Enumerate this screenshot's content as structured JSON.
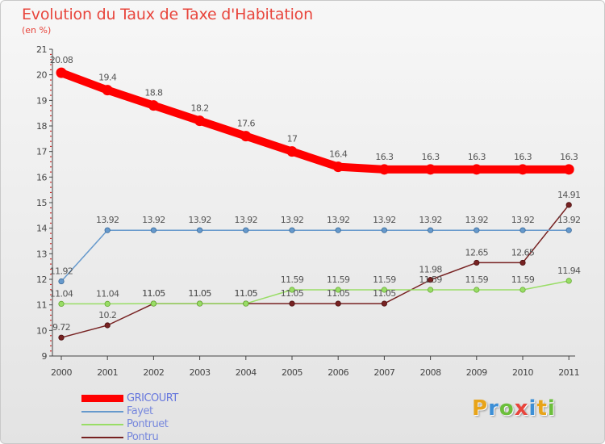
{
  "title": "Evolution du Taux de Taxe d'Habitation",
  "subtitle": "(en %)",
  "brand": {
    "letters": [
      "P",
      "r",
      "o",
      "x",
      "i",
      "t",
      "i"
    ],
    "colors": [
      "#e8a419",
      "#3d8fd6",
      "#6cbf3c",
      "#e8453c",
      "#3d8fd6",
      "#e8a419",
      "#6cbf3c"
    ]
  },
  "chart_data": {
    "type": "line",
    "x": [
      "2000",
      "2001",
      "2002",
      "2003",
      "2004",
      "2005",
      "2006",
      "2007",
      "2008",
      "2009",
      "2010",
      "2011"
    ],
    "ylim": [
      9,
      21
    ],
    "yticks": [
      "9",
      "10",
      "11",
      "12",
      "13",
      "14",
      "15",
      "16",
      "17",
      "18",
      "19",
      "20",
      "21"
    ],
    "grid": false,
    "legend_position": "bottom-left",
    "series": [
      {
        "name": "GRICOURT",
        "color": "#ff0000",
        "values": [
          20.08,
          19.4,
          18.8,
          18.2,
          17.6,
          17,
          16.4,
          16.3,
          16.3,
          16.3,
          16.3,
          16.3
        ],
        "labels": [
          "20.08",
          "19.4",
          "18.8",
          "18.2",
          "17.6",
          "17",
          "16.4",
          "16.3",
          "16.3",
          "16.3",
          "16.3",
          "16.3"
        ]
      },
      {
        "name": "Fayet",
        "color": "#6699cc",
        "values": [
          11.92,
          13.92,
          13.92,
          13.92,
          13.92,
          13.92,
          13.92,
          13.92,
          13.92,
          13.92,
          13.92,
          13.92
        ],
        "labels": [
          "11.92",
          "13.92",
          "13.92",
          "13.92",
          "13.92",
          "13.92",
          "13.92",
          "13.92",
          "13.92",
          "13.92",
          "13.92",
          "13.92"
        ]
      },
      {
        "name": "Pontruet",
        "color": "#99dd66",
        "values": [
          11.04,
          11.04,
          11.05,
          11.05,
          11.05,
          11.59,
          11.59,
          11.59,
          11.59,
          11.59,
          11.59,
          11.94
        ],
        "labels": [
          "11.04",
          "11.04",
          "11.05",
          "11.05",
          "11.05",
          "11.59",
          "11.59",
          "11.59",
          "11.59",
          "11.59",
          "11.59",
          "11.94"
        ]
      },
      {
        "name": "Pontru",
        "color": "#772222",
        "values": [
          9.72,
          10.2,
          11.05,
          11.05,
          11.05,
          11.05,
          11.05,
          11.05,
          11.98,
          12.65,
          12.65,
          14.91
        ],
        "labels": [
          "9.72",
          "10.2",
          "11.05",
          "11.05",
          "11.05",
          "11.05",
          "11.05",
          "11.05",
          "11.98",
          "12.65",
          "12.65",
          "14.91"
        ]
      }
    ]
  }
}
